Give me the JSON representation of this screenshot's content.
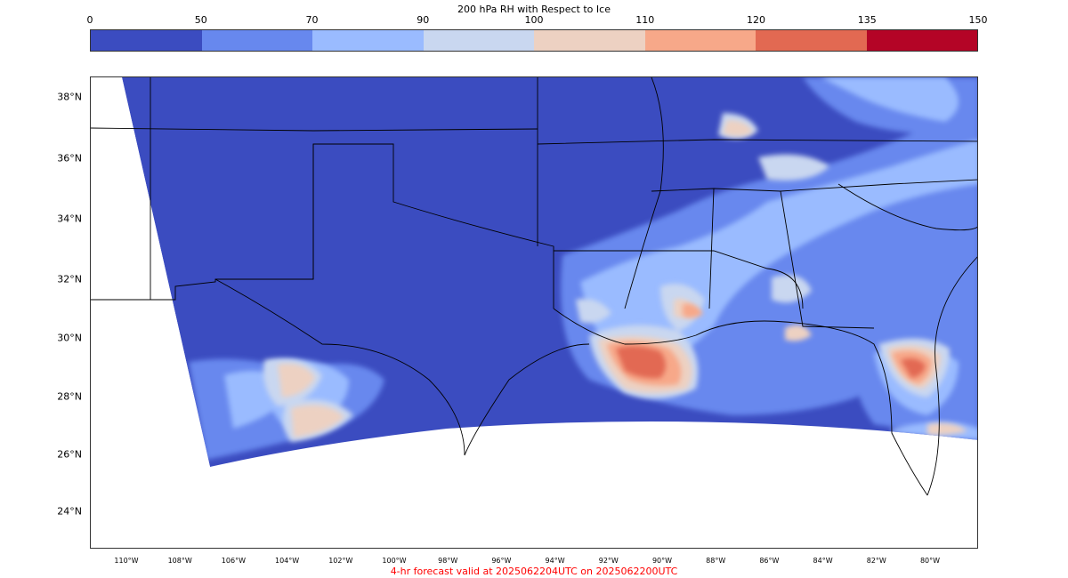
{
  "colorbar": {
    "title": "200 hPa RH with Respect to Ice",
    "ticks": [
      "0",
      "50",
      "70",
      "90",
      "100",
      "110",
      "120",
      "135",
      "150"
    ],
    "colors": [
      "#3b4cc0",
      "#6788ee",
      "#9abbff",
      "#c9d7f0",
      "#edd1c2",
      "#f7a889",
      "#e26952",
      "#b40426"
    ]
  },
  "map": {
    "lat_labels": [
      "38°N",
      "36°N",
      "34°N",
      "32°N",
      "30°N",
      "28°N",
      "26°N",
      "24°N"
    ],
    "lon_labels": [
      "110°W",
      "108°W",
      "106°W",
      "104°W",
      "102°W",
      "100°W",
      "98°W",
      "96°W",
      "94°W",
      "92°W",
      "90°W",
      "88°W",
      "86°W",
      "84°W",
      "82°W",
      "80°W"
    ]
  },
  "footer": {
    "text": "4-hr forecast valid at 2025062204UTC on 2025062200UTC",
    "color": "#ff0000"
  }
}
